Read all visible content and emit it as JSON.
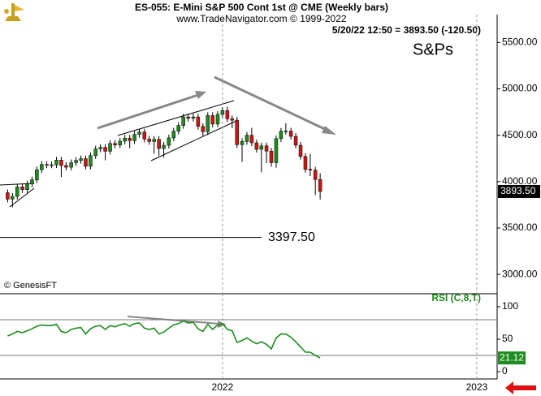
{
  "chart_data": [
    {
      "type": "candlestick",
      "title": "ES-055:  E-Mini S&P 500 Cont 1st @ CME  (Weekly bars)",
      "subtitle": "www.TradeNavigator.com © 1999-2022",
      "quote": "5/20/22 12:50 = 3893.50 (-120.50)",
      "label": "S&Ps",
      "credit": "© GenesisFT",
      "up_color": "#1e8c1e",
      "down_color": "#d01414",
      "x": [
        2021.155,
        2021.174,
        2021.193,
        2021.213,
        2021.232,
        2021.251,
        2021.27,
        2021.289,
        2021.309,
        2021.328,
        2021.347,
        2021.366,
        2021.385,
        2021.405,
        2021.424,
        2021.443,
        2021.462,
        2021.481,
        2021.501,
        2021.52,
        2021.539,
        2021.558,
        2021.577,
        2021.597,
        2021.616,
        2021.635,
        2021.654,
        2021.673,
        2021.693,
        2021.712,
        2021.731,
        2021.75,
        2021.769,
        2021.789,
        2021.808,
        2021.827,
        2021.846,
        2021.865,
        2021.885,
        2021.904,
        2021.923,
        2021.942,
        2021.961,
        2021.981,
        2022.0,
        2022.019,
        2022.038,
        2022.057,
        2022.077,
        2022.096,
        2022.115,
        2022.134,
        2022.153,
        2022.173,
        2022.192,
        2022.211,
        2022.23,
        2022.249,
        2022.269,
        2022.288,
        2022.307,
        2022.326,
        2022.345,
        2022.365,
        2022.384
      ],
      "open": [
        3880,
        3811,
        3841,
        3943,
        3913,
        3974,
        4019,
        4128,
        4185,
        4180,
        4181,
        4232,
        4173,
        4155,
        4204,
        4229,
        4247,
        4166,
        4280,
        4352,
        4369,
        4327,
        4411,
        4395,
        4436,
        4468,
        4441,
        4509,
        4535,
        4458,
        4432,
        4455,
        4357,
        4391,
        4471,
        4544,
        4605,
        4697,
        4682,
        4697,
        4595,
        4538,
        4712,
        4620,
        4725,
        4766,
        4677,
        4662,
        4398,
        4432,
        4500,
        4418,
        4348,
        4385,
        4329,
        4204,
        4463,
        4543,
        4545,
        4488,
        4392,
        4272,
        4132,
        4123,
        4023
      ],
      "high": [
        3915,
        3876,
        3978,
        3978,
        4009,
        4054,
        4163,
        4220,
        4220,
        4216,
        4267,
        4267,
        4208,
        4239,
        4264,
        4282,
        4282,
        4315,
        4387,
        4404,
        4404,
        4446,
        4446,
        4471,
        4503,
        4503,
        4544,
        4570,
        4570,
        4493,
        4490,
        4490,
        4426,
        4506,
        4579,
        4640,
        4732,
        4732,
        4732,
        4732,
        4630,
        4747,
        4747,
        4760,
        4801,
        4808,
        4712,
        4697,
        4467,
        4535,
        4580,
        4453,
        4420,
        4420,
        4364,
        4498,
        4578,
        4630,
        4580,
        4523,
        4427,
        4307,
        4300,
        4158,
        4090
      ],
      "low": [
        3776,
        3723,
        3806,
        3878,
        3878,
        3939,
        3984,
        4093,
        4145,
        4145,
        4146,
        4050,
        4120,
        4120,
        4169,
        4194,
        4131,
        4131,
        4245,
        4317,
        4230,
        4292,
        4360,
        4360,
        4401,
        4360,
        4406,
        4474,
        4423,
        4397,
        4300,
        4278,
        4260,
        4356,
        4436,
        4509,
        4570,
        4647,
        4647,
        4560,
        4490,
        4503,
        4585,
        4585,
        4690,
        4642,
        4575,
        4363,
        4212,
        4397,
        4383,
        4313,
        4101,
        4200,
        4160,
        4150,
        4428,
        4508,
        4453,
        4357,
        4237,
        4097,
        4060,
        3855,
        3807
      ],
      "close": [
        3811,
        3841,
        3943,
        3913,
        3974,
        4019,
        4128,
        4185,
        4180,
        4181,
        4232,
        4173,
        4155,
        4204,
        4229,
        4247,
        4166,
        4280,
        4352,
        4369,
        4327,
        4411,
        4395,
        4436,
        4468,
        4441,
        4509,
        4535,
        4458,
        4432,
        4455,
        4357,
        4391,
        4471,
        4544,
        4605,
        4697,
        4682,
        4697,
        4595,
        4538,
        4712,
        4620,
        4725,
        4766,
        4677,
        4662,
        4398,
        4432,
        4500,
        4418,
        4348,
        4385,
        4329,
        4204,
        4463,
        4543,
        4545,
        4488,
        4392,
        4272,
        4132,
        4123,
        4023,
        3893.5
      ],
      "last_price": {
        "value": 3893.5,
        "label": "3893.50"
      },
      "hline": {
        "value": 3397.5,
        "label": "3397.50"
      },
      "xlim": [
        2021.125,
        2023.08
      ],
      "ylim": [
        2800,
        5800
      ],
      "yticks": [
        {
          "value": 3000,
          "label": "3000.00"
        },
        {
          "value": 3500,
          "label": "3500.00"
        },
        {
          "value": 4000,
          "label": "4000.00"
        },
        {
          "value": 4500,
          "label": "4500.00"
        },
        {
          "value": 5000,
          "label": "5000.00"
        },
        {
          "value": 5500,
          "label": "5500.00"
        }
      ]
    },
    {
      "type": "line",
      "title": "RSI (C,8,T)",
      "color": "#1e8c1e",
      "x": [
        2021.155,
        2021.174,
        2021.193,
        2021.213,
        2021.232,
        2021.251,
        2021.27,
        2021.289,
        2021.309,
        2021.328,
        2021.347,
        2021.366,
        2021.385,
        2021.405,
        2021.424,
        2021.443,
        2021.462,
        2021.481,
        2021.501,
        2021.52,
        2021.539,
        2021.558,
        2021.577,
        2021.597,
        2021.616,
        2021.635,
        2021.654,
        2021.673,
        2021.693,
        2021.712,
        2021.731,
        2021.75,
        2021.769,
        2021.789,
        2021.808,
        2021.827,
        2021.846,
        2021.865,
        2021.885,
        2021.904,
        2021.923,
        2021.942,
        2021.961,
        2021.981,
        2022.0,
        2022.019,
        2022.038,
        2022.057,
        2022.077,
        2022.096,
        2022.115,
        2022.134,
        2022.153,
        2022.173,
        2022.192,
        2022.211,
        2022.23,
        2022.249,
        2022.269,
        2022.288,
        2022.307,
        2022.326,
        2022.345,
        2022.365,
        2022.384
      ],
      "values": [
        55,
        58,
        62,
        60,
        63,
        66,
        70,
        72,
        71,
        71,
        73,
        62,
        60,
        65,
        67,
        68,
        58,
        66,
        70,
        71,
        65,
        71,
        69,
        72,
        74,
        70,
        74,
        75,
        67,
        65,
        67,
        58,
        61,
        67,
        72,
        74,
        78,
        75,
        76,
        66,
        62,
        73,
        65,
        72,
        74,
        65,
        63,
        45,
        48,
        52,
        47,
        43,
        46,
        42,
        35,
        52,
        58,
        58,
        53,
        46,
        38,
        30,
        30,
        25,
        21.12
      ],
      "last_value": {
        "value": 21.12,
        "label": "21.12"
      },
      "levels": [
        80,
        25
      ],
      "xlim": [
        2021.125,
        2023.08
      ],
      "xticks": [
        2022,
        2023
      ],
      "ylim": [
        -10,
        120
      ],
      "yticks": [
        0,
        50,
        100
      ]
    }
  ]
}
